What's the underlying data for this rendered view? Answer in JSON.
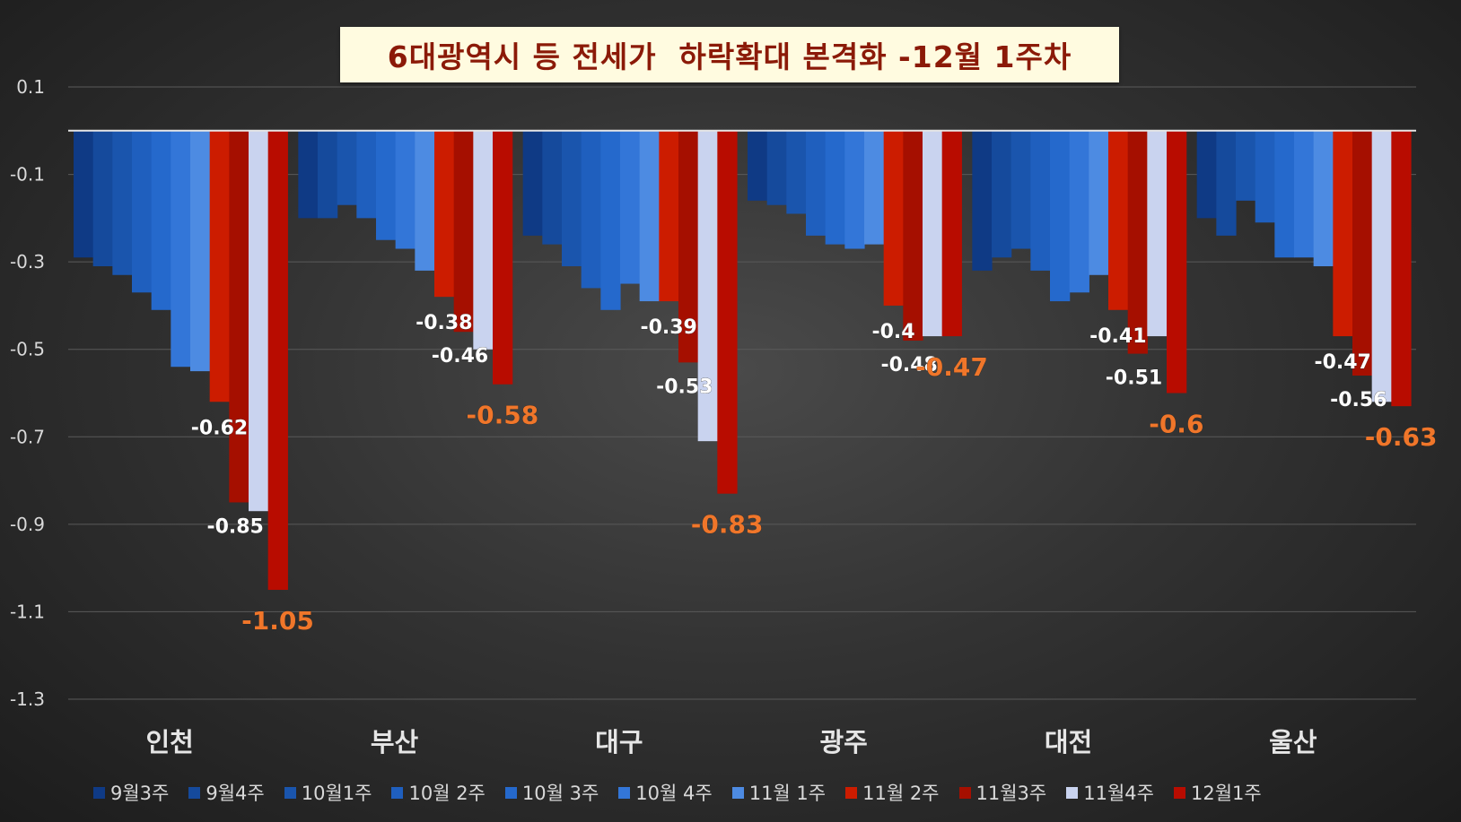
{
  "chart_data": {
    "type": "bar",
    "title": "6대광역시 등 전세가  하락확대 본격화 -12월 1주차",
    "categories": [
      "인천",
      "부산",
      "대구",
      "광주",
      "대전",
      "울산"
    ],
    "ylim": [
      -1.3,
      0.1
    ],
    "yticks": [
      "0.1",
      "-0.1",
      "-0.3",
      "-0.5",
      "-0.7",
      "-0.9",
      "-1.1",
      "-1.3"
    ],
    "grid": true,
    "legend_position": "bottom",
    "series": [
      {
        "name": "9월3주",
        "color": "#0f3a85",
        "values": [
          -0.29,
          -0.2,
          -0.24,
          -0.16,
          -0.32,
          -0.2
        ]
      },
      {
        "name": "9월4주",
        "color": "#154a9c",
        "values": [
          -0.31,
          -0.2,
          -0.26,
          -0.17,
          -0.29,
          -0.24
        ]
      },
      {
        "name": "10월1주",
        "color": "#1a55ad",
        "values": [
          -0.33,
          -0.17,
          -0.31,
          -0.19,
          -0.27,
          -0.16
        ]
      },
      {
        "name": "10월 2주",
        "color": "#1f5fbe",
        "values": [
          -0.37,
          -0.2,
          -0.36,
          -0.24,
          -0.32,
          -0.21
        ]
      },
      {
        "name": "10월 3주",
        "color": "#2569cc",
        "values": [
          -0.41,
          -0.25,
          -0.41,
          -0.26,
          -0.39,
          -0.29
        ]
      },
      {
        "name": "10월 4주",
        "color": "#3376d8",
        "values": [
          -0.54,
          -0.27,
          -0.35,
          -0.27,
          -0.37,
          -0.29
        ]
      },
      {
        "name": "11월 1주",
        "color": "#4d8be2",
        "values": [
          -0.55,
          -0.32,
          -0.39,
          -0.26,
          -0.33,
          -0.31
        ]
      },
      {
        "name": "11월 2주",
        "color": "#cc1c00",
        "values": [
          -0.62,
          -0.38,
          -0.39,
          -0.4,
          -0.41,
          -0.47
        ]
      },
      {
        "name": "11월3주",
        "color": "#a50f00",
        "values": [
          -0.85,
          -0.46,
          -0.53,
          -0.48,
          -0.51,
          -0.56
        ]
      },
      {
        "name": "11월4주",
        "color": "#c9d3ef",
        "values": [
          -0.87,
          -0.5,
          -0.71,
          -0.47,
          -0.47,
          -0.62
        ]
      },
      {
        "name": "12월1주",
        "color": "#b80c00",
        "values": [
          -1.05,
          -0.58,
          -0.83,
          -0.47,
          -0.6,
          -0.63
        ]
      }
    ],
    "data_labels": [
      {
        "group": 0,
        "series": 7,
        "text": "-0.62"
      },
      {
        "group": 0,
        "series": 8,
        "text": "-0.85"
      },
      {
        "group": 0,
        "series": 10,
        "text": "-1.05",
        "highlight": true
      },
      {
        "group": 1,
        "series": 7,
        "text": "-0.38"
      },
      {
        "group": 1,
        "series": 8,
        "text": "-0.46"
      },
      {
        "group": 1,
        "series": 10,
        "text": "-0.58",
        "highlight": true
      },
      {
        "group": 2,
        "series": 7,
        "text": "-0.39"
      },
      {
        "group": 2,
        "series": 8,
        "text": "-0.53"
      },
      {
        "group": 2,
        "series": 10,
        "text": "-0.83",
        "highlight": true
      },
      {
        "group": 3,
        "series": 7,
        "text": "-0.4"
      },
      {
        "group": 3,
        "series": 8,
        "text": "-0.48"
      },
      {
        "group": 3,
        "series": 10,
        "text": "-0.47",
        "highlight": true
      },
      {
        "group": 4,
        "series": 7,
        "text": "-0.41"
      },
      {
        "group": 4,
        "series": 8,
        "text": "-0.51"
      },
      {
        "group": 4,
        "series": 10,
        "text": "-0.6",
        "highlight": true
      },
      {
        "group": 5,
        "series": 7,
        "text": "-0.47"
      },
      {
        "group": 5,
        "series": 8,
        "text": "-0.56"
      },
      {
        "group": 5,
        "series": 10,
        "text": "-0.63",
        "highlight": true
      }
    ],
    "colors": {
      "highlight_label": "#f0762a",
      "label": "#ffffff",
      "axis_text": "#d9d9d9",
      "grid": "#5a5a5a",
      "zero_line": "#e6e6e6"
    }
  }
}
